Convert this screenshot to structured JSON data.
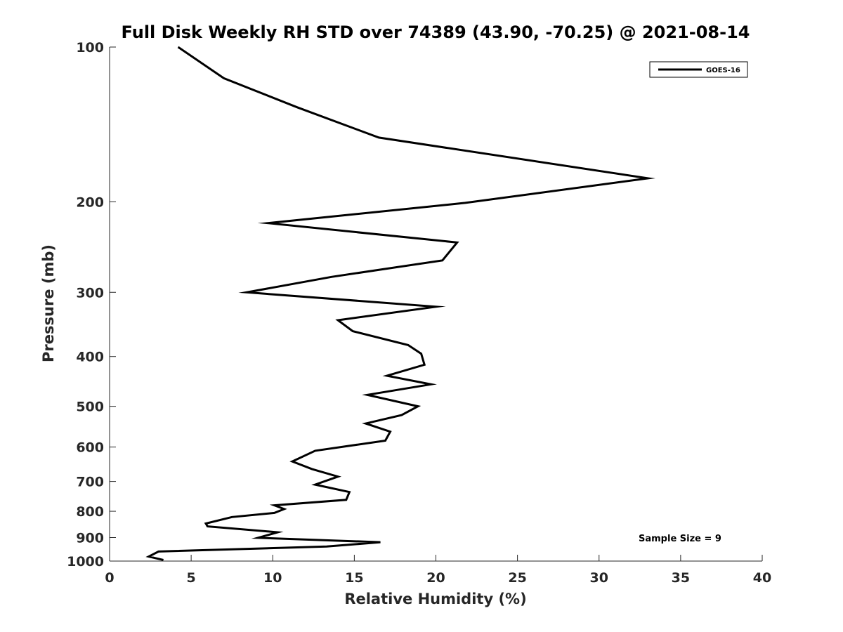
{
  "chart_data": {
    "type": "line",
    "title": "Full Disk Weekly RH STD over 74389 (43.90, -70.25) @ 2021-08-14",
    "xlabel": "Relative Humidity (%)",
    "ylabel": "Pressure (mb)",
    "xlim": [
      0,
      40
    ],
    "ylim": [
      100,
      1000
    ],
    "y_scale": "log",
    "y_reversed": true,
    "x_ticks": [
      "0",
      "5",
      "10",
      "15",
      "20",
      "25",
      "30",
      "35",
      "40"
    ],
    "y_ticks": [
      "100",
      "200",
      "300",
      "400",
      "500",
      "600",
      "700",
      "800",
      "900",
      "1000"
    ],
    "grid": false,
    "legend": {
      "position": "top-right"
    },
    "annotation": "Sample Size = 9",
    "series": [
      {
        "name": "GOES-16",
        "color": "#000000",
        "x": [
          4.2,
          7.0,
          11.5,
          16.5,
          33.0,
          21.8,
          9.7,
          21.3,
          20.4,
          13.6,
          8.4,
          20.0,
          14.0,
          14.9,
          18.3,
          19.1,
          19.3,
          17.0,
          19.7,
          15.8,
          18.9,
          17.9,
          15.7,
          17.2,
          16.9,
          12.6,
          11.2,
          12.4,
          14.0,
          12.6,
          14.7,
          14.5,
          10.1,
          10.7,
          10.1,
          7.5,
          5.9,
          6.0,
          10.3,
          9.1,
          16.6,
          13.3,
          3.0,
          2.4,
          3.3
        ],
        "y": [
          100,
          115,
          131,
          150,
          180,
          201,
          220,
          240,
          260,
          280,
          300,
          320,
          340,
          357,
          380,
          395,
          415,
          436,
          453,
          475,
          500,
          520,
          540,
          560,
          583,
          610,
          640,
          662,
          685,
          710,
          734,
          760,
          779,
          792,
          806,
          821,
          845,
          856,
          879,
          901,
          919,
          937,
          958,
          980,
          995
        ]
      }
    ]
  }
}
